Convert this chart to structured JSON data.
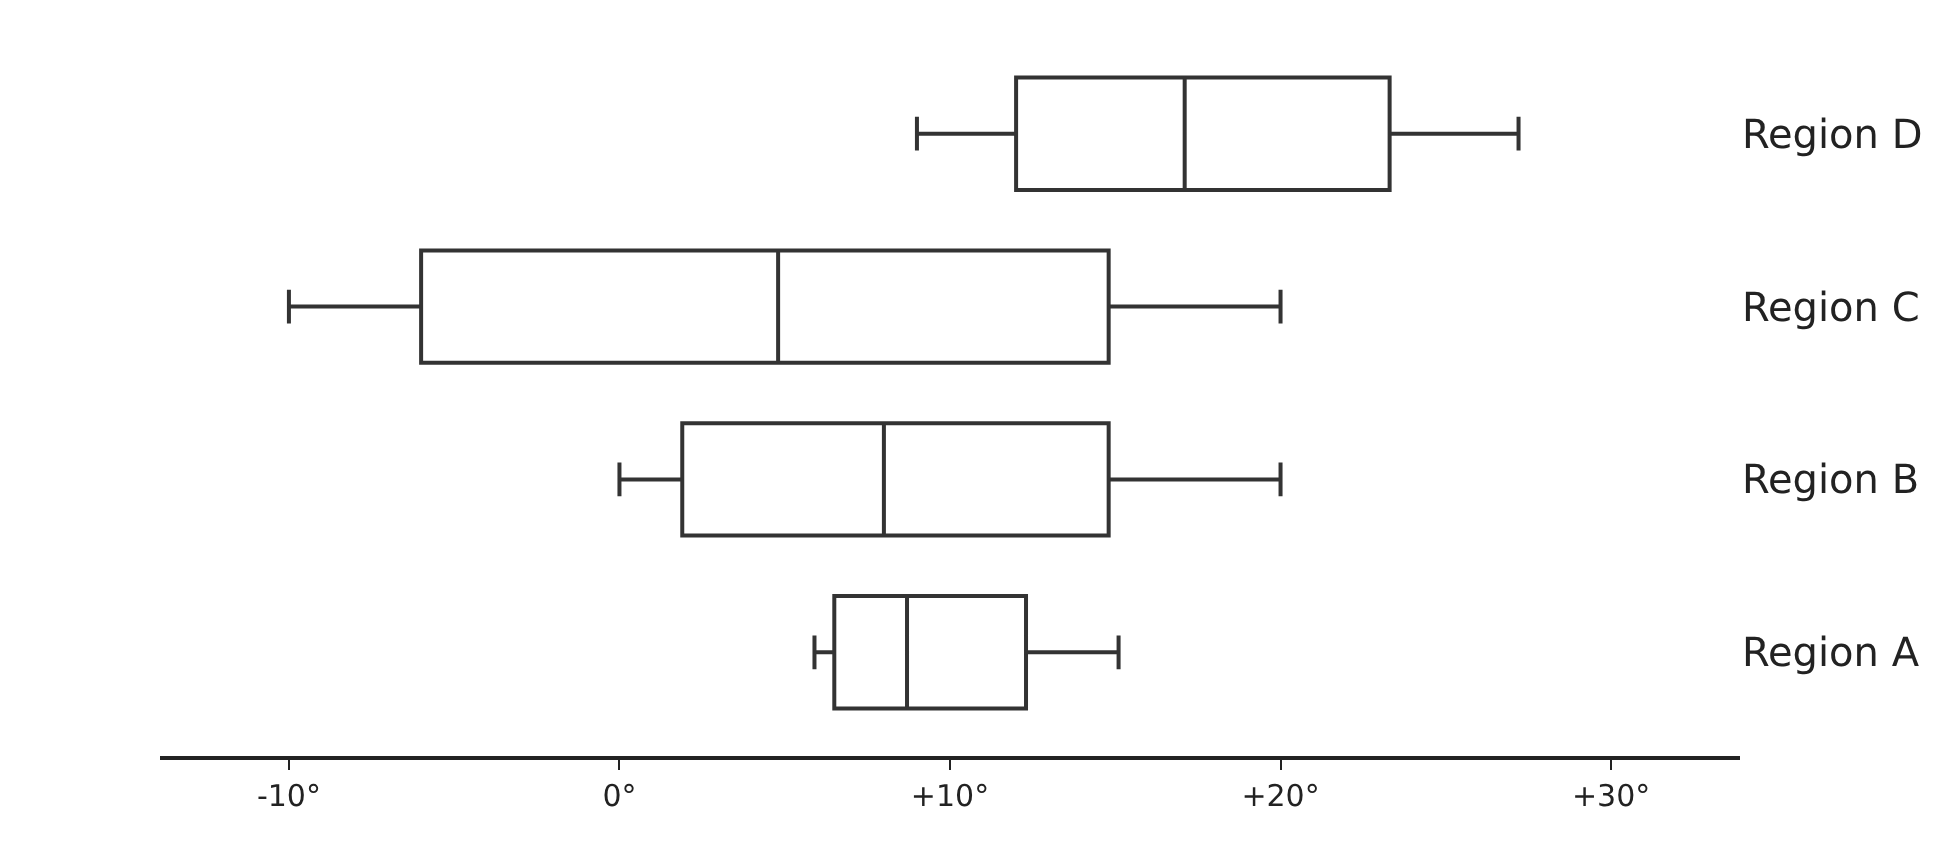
{
  "chart_data": {
    "type": "box",
    "orientation": "horizontal",
    "categories": [
      "Region D",
      "Region C",
      "Region B",
      "Region A"
    ],
    "boxes": [
      {
        "low": 9,
        "q1": 12,
        "median": 17.1,
        "q3": 23.3,
        "high": 27.2
      },
      {
        "low": -10,
        "q1": -6,
        "median": 4.8,
        "q3": 14.8,
        "high": 20
      },
      {
        "low": 0,
        "q1": 1.9,
        "median": 8,
        "q3": 14.8,
        "high": 20
      },
      {
        "low": 5.9,
        "q1": 6.5,
        "median": 8.7,
        "q3": 12.3,
        "high": 15.1
      }
    ],
    "color": "#333333",
    "xlim": [
      -13.9,
      33.9
    ],
    "xticks": [
      {
        "value": -10,
        "label": "-10°"
      },
      {
        "value": 0,
        "label": "0°"
      },
      {
        "value": 10,
        "label": "+10°"
      },
      {
        "value": 20,
        "label": "+20°"
      },
      {
        "value": 30,
        "label": "+30°"
      }
    ],
    "grid": false
  }
}
